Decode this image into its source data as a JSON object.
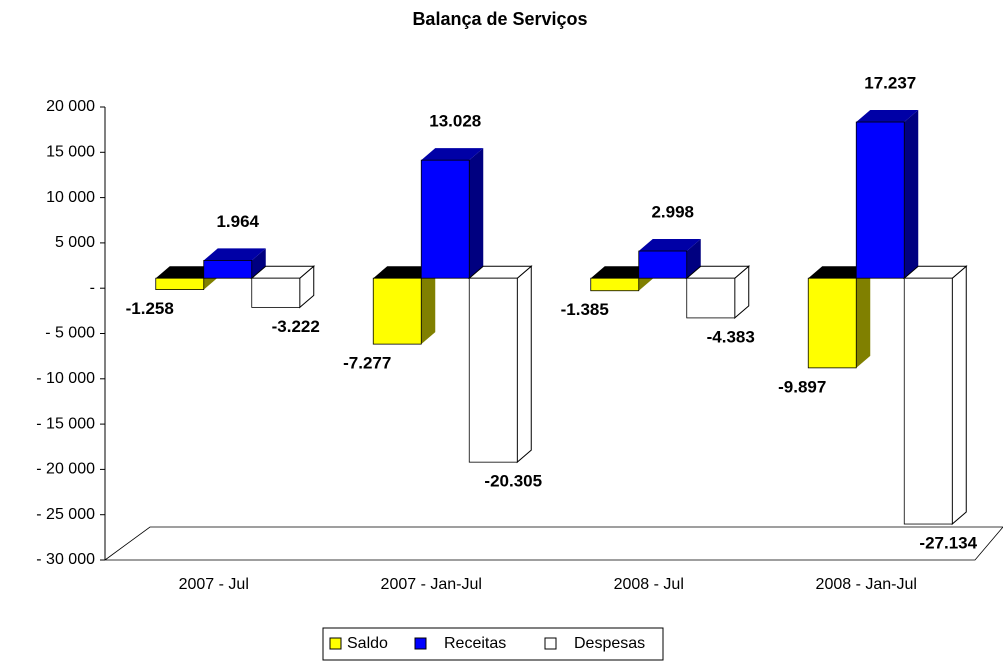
{
  "chart_data": {
    "type": "bar3d",
    "title": "Balança de Serviços",
    "categories": [
      "2007 - Jul",
      "2007 - Jan-Jul",
      "2008 - Jul",
      "2008 - Jan-Jul"
    ],
    "series": [
      {
        "name": "Saldo",
        "color": "#ffff00",
        "values": [
          -1258,
          -7277,
          -1385,
          -9897
        ],
        "value_labels": [
          "-1.258",
          "-7.277",
          "-1.385",
          "-9.897"
        ]
      },
      {
        "name": "Receitas",
        "color": "#0000ff",
        "values": [
          1964,
          13028,
          2998,
          17237
        ],
        "value_labels": [
          "1.964",
          "13.028",
          "2.998",
          "17.237"
        ]
      },
      {
        "name": "Despesas",
        "color": "#ffffff",
        "values": [
          -3222,
          -20305,
          -4383,
          -27134
        ],
        "value_labels": [
          "-3.222",
          "-20.305",
          "-4.383",
          "-27.134"
        ]
      }
    ],
    "ylim": [
      -30000,
      20000
    ],
    "yticks": [
      {
        "value": -30000,
        "label": "- 30 000"
      },
      {
        "value": -25000,
        "label": "- 25 000"
      },
      {
        "value": -20000,
        "label": "- 20 000"
      },
      {
        "value": -15000,
        "label": "- 15 000"
      },
      {
        "value": -10000,
        "label": "- 10 000"
      },
      {
        "value": -5000,
        "label": "- 5 000"
      },
      {
        "value": 0,
        "label": "-"
      },
      {
        "value": 5000,
        "label": "5 000"
      },
      {
        "value": 10000,
        "label": "10 000"
      },
      {
        "value": 15000,
        "label": "15 000"
      },
      {
        "value": 20000,
        "label": "20 000"
      }
    ],
    "legend": "bottom"
  }
}
